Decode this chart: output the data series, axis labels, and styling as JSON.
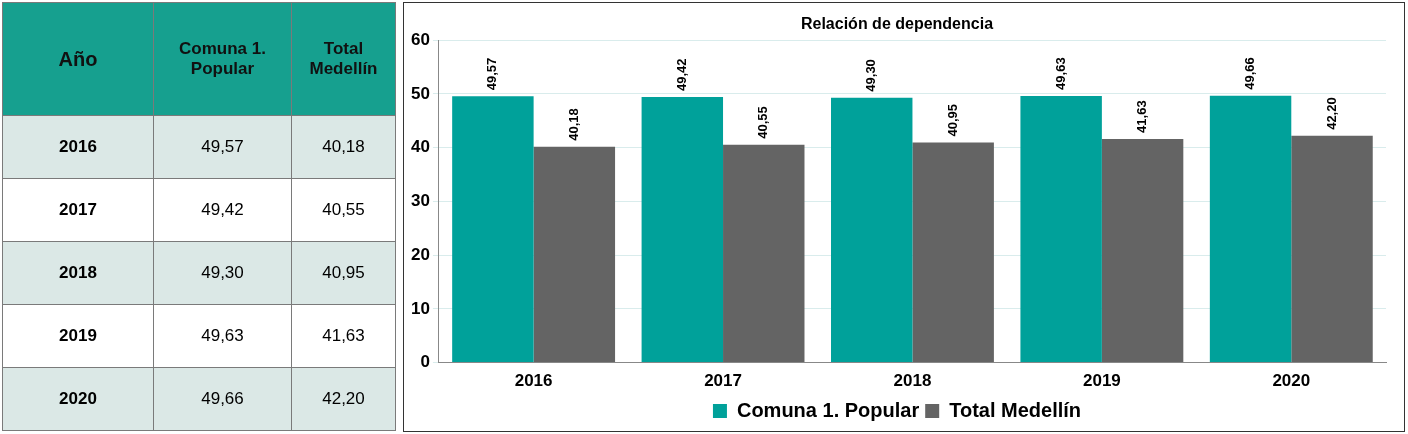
{
  "chart_data": {
    "type": "bar",
    "title": "Relación de dependencia",
    "annotations": [
      "Año"
    ],
    "categories": [
      "2016",
      "2017",
      "2018",
      "2019",
      "2020"
    ],
    "series": [
      {
        "name": "Comuna 1. Popular",
        "color": "#00a19a",
        "values": [
          49.57,
          49.42,
          49.3,
          49.63,
          49.66
        ],
        "value_labels": [
          "49,57",
          "49,42",
          "49,30",
          "49,63",
          "49,66"
        ]
      },
      {
        "name": "Total Medellín",
        "color": "#646464",
        "values": [
          40.18,
          40.55,
          40.95,
          41.63,
          42.2
        ],
        "value_labels": [
          "40,18",
          "40,55",
          "40,95",
          "41,63",
          "42,20"
        ]
      }
    ],
    "ylim": [
      0,
      60
    ],
    "yticks": [
      0,
      10,
      20,
      30,
      40,
      50,
      60
    ],
    "grid": "y",
    "legend": "bottom"
  }
}
